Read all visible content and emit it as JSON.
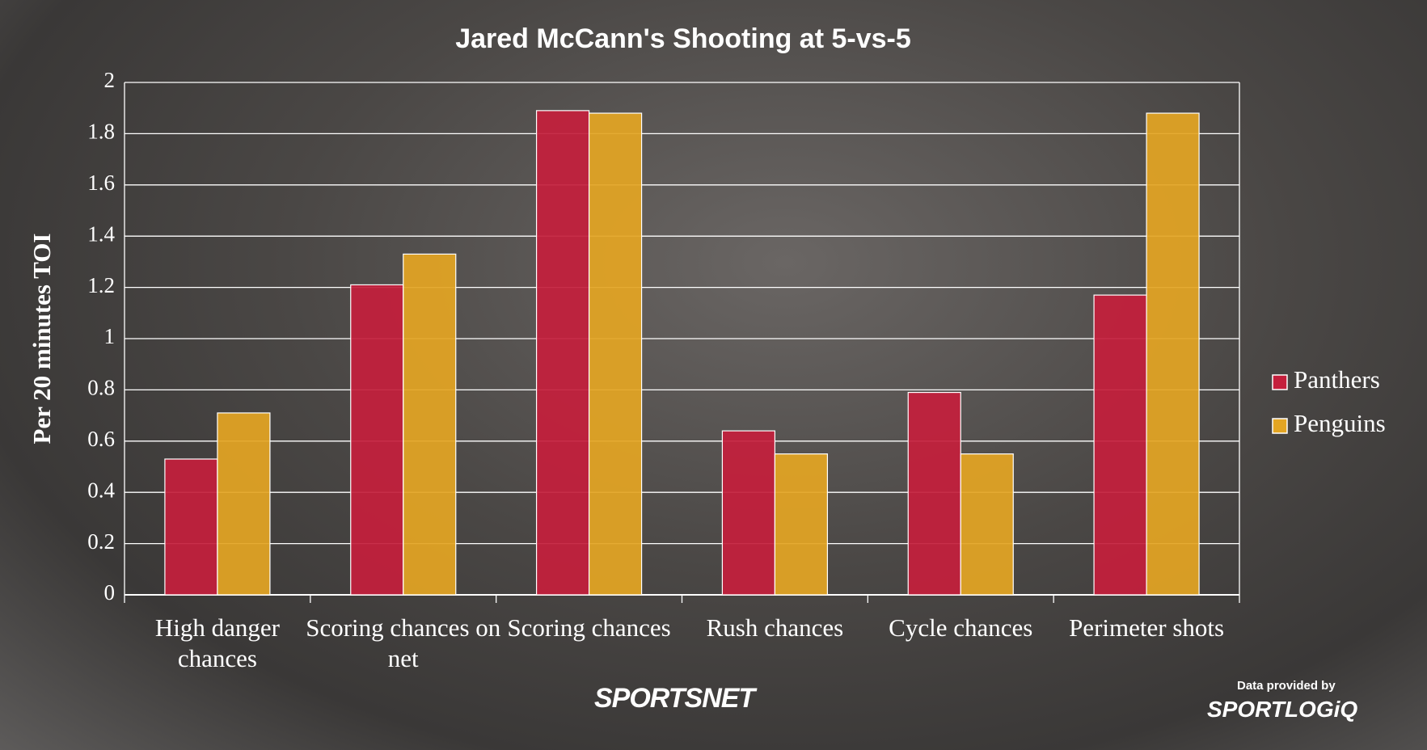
{
  "chart_data": {
    "type": "bar",
    "title": "Jared McCann's Shooting at 5-vs-5",
    "y_label": "Per 20 minutes TOI",
    "categories": [
      "High danger chances",
      "Scoring chances on net",
      "Scoring chances",
      "Rush chances",
      "Cycle chances",
      "Perimeter shots"
    ],
    "series": [
      {
        "name": "Panthers",
        "color": "#c41f3c",
        "values": [
          0.53,
          1.21,
          1.89,
          0.64,
          0.79,
          1.17
        ]
      },
      {
        "name": "Penguins",
        "color": "#e3a523",
        "values": [
          0.71,
          1.33,
          1.88,
          0.55,
          0.55,
          1.88
        ]
      }
    ],
    "ylim": [
      0,
      2
    ],
    "yticks": [
      0,
      0.2,
      0.4,
      0.6,
      0.8,
      1,
      1.2,
      1.4,
      1.6,
      1.8,
      2
    ],
    "grid": true,
    "legend": "right"
  },
  "credit": "Data provided by",
  "logos": [
    "SPORTSNET",
    "SPORTLOGiQ"
  ]
}
